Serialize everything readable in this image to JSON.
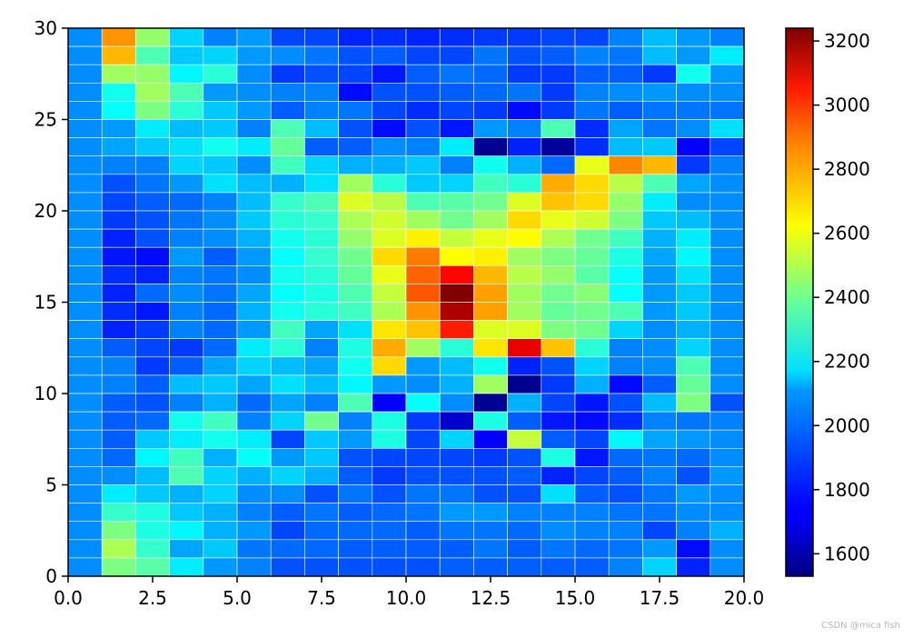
{
  "chart_data": {
    "type": "heatmap",
    "title": "",
    "xlabel": "",
    "ylabel": "",
    "xlim": [
      0,
      20
    ],
    "ylim": [
      0,
      30
    ],
    "x_ticks": [
      "0.0",
      "2.5",
      "5.0",
      "7.5",
      "10.0",
      "12.5",
      "15.0",
      "17.5",
      "20.0"
    ],
    "x_tick_values": [
      0,
      2.5,
      5,
      7.5,
      10,
      12.5,
      15,
      17.5,
      20
    ],
    "y_ticks": [
      "0",
      "5",
      "10",
      "15",
      "20",
      "25",
      "30"
    ],
    "y_tick_values": [
      0,
      5,
      10,
      15,
      20,
      25,
      30
    ],
    "colormap": "jet",
    "grid_lines": "white",
    "colorbar": {
      "min": 1530,
      "max": 3240,
      "ticks": [
        "1600",
        "1800",
        "2000",
        "2200",
        "2400",
        "2600",
        "2800",
        "3000",
        "3200"
      ],
      "tick_values": [
        1600,
        1800,
        2000,
        2200,
        2400,
        2600,
        2800,
        3000,
        3200
      ]
    },
    "n_cols": 20,
    "n_rows": 30,
    "row_order": "top-to-bottom (first row is y=29..30)",
    "values": [
      [
        1980,
        2780,
        2420,
        2100,
        1960,
        2000,
        1860,
        1860,
        1800,
        1820,
        1800,
        1820,
        1840,
        1840,
        1860,
        1860,
        1960,
        2060,
        2000,
        1960
      ],
      [
        1980,
        2720,
        2300,
        2080,
        2100,
        2000,
        1980,
        1940,
        1880,
        1900,
        1860,
        1860,
        1940,
        1880,
        1900,
        1960,
        1940,
        2060,
        2000,
        2140
      ],
      [
        1980,
        2440,
        2420,
        2160,
        2240,
        1980,
        1840,
        1880,
        1860,
        1780,
        1900,
        1940,
        1920,
        1840,
        1840,
        1900,
        1900,
        1840,
        2200,
        2000
      ],
      [
        1980,
        2200,
        2440,
        2300,
        2000,
        1980,
        1960,
        1960,
        1760,
        1880,
        1880,
        1900,
        1920,
        1940,
        1840,
        1960,
        1980,
        2000,
        1980,
        1980
      ],
      [
        1980,
        2180,
        2380,
        2240,
        2080,
        2000,
        1900,
        1960,
        1940,
        1860,
        1820,
        1860,
        1840,
        1760,
        1840,
        1940,
        1900,
        1940,
        1940,
        1940
      ],
      [
        1980,
        2000,
        2140,
        2060,
        2080,
        1960,
        2300,
        2060,
        1880,
        1760,
        1880,
        1780,
        2000,
        1960,
        2300,
        1820,
        2020,
        1940,
        1980,
        2120
      ],
      [
        1980,
        2020,
        2080,
        2120,
        2200,
        2140,
        2340,
        1900,
        1900,
        1980,
        1960,
        2140,
        1560,
        1800,
        1580,
        1820,
        2060,
        2080,
        1740,
        1860
      ],
      [
        1980,
        1960,
        1960,
        2100,
        2080,
        1980,
        2280,
        2100,
        2040,
        2040,
        2080,
        1960,
        2200,
        2040,
        1920,
        2560,
        2800,
        2720,
        1840,
        1960
      ],
      [
        1980,
        1880,
        1940,
        2000,
        2120,
        2060,
        2040,
        2120,
        2440,
        2240,
        2080,
        2100,
        2280,
        2240,
        2740,
        2660,
        2480,
        2300,
        2020,
        1980
      ],
      [
        1980,
        1860,
        1900,
        1920,
        1960,
        2060,
        2260,
        2300,
        2540,
        2480,
        2300,
        2320,
        2360,
        2540,
        2700,
        2660,
        2420,
        2140,
        1980,
        1980
      ],
      [
        1980,
        1840,
        1880,
        1940,
        1980,
        2080,
        2240,
        2260,
        2460,
        2520,
        2440,
        2360,
        2440,
        2660,
        2560,
        2520,
        2380,
        2080,
        2060,
        1980
      ],
      [
        1980,
        1800,
        1880,
        1960,
        1980,
        2040,
        2200,
        2240,
        2420,
        2540,
        2620,
        2500,
        2560,
        2600,
        2460,
        2360,
        2280,
        2040,
        2140,
        1980
      ],
      [
        1980,
        1780,
        1760,
        2000,
        1900,
        2000,
        2180,
        2260,
        2360,
        2660,
        2820,
        2600,
        2620,
        2440,
        2380,
        2340,
        2220,
        2020,
        2160,
        1980
      ],
      [
        1980,
        1820,
        1800,
        1960,
        1940,
        1980,
        2200,
        2240,
        2340,
        2560,
        2860,
        3020,
        2720,
        2480,
        2420,
        2320,
        2180,
        2000,
        2120,
        1980
      ],
      [
        1980,
        1800,
        1920,
        1980,
        1940,
        2020,
        2180,
        2220,
        2300,
        2500,
        2880,
        3240,
        2760,
        2440,
        2360,
        2400,
        2180,
        2000,
        2080,
        1980
      ],
      [
        1980,
        1820,
        1780,
        1960,
        1920,
        2040,
        2200,
        2240,
        2280,
        2460,
        2780,
        3160,
        2760,
        2440,
        2340,
        2360,
        2300,
        2000,
        2080,
        1980
      ],
      [
        1980,
        1800,
        1840,
        1960,
        1920,
        2000,
        2280,
        2020,
        2120,
        2640,
        2700,
        2980,
        2540,
        2540,
        2380,
        2360,
        2100,
        1980,
        2040,
        1980
      ],
      [
        1980,
        1900,
        1860,
        1840,
        1920,
        2140,
        2240,
        1960,
        2220,
        2740,
        2440,
        2240,
        2640,
        3060,
        2700,
        2240,
        1960,
        1980,
        2100,
        1980
      ],
      [
        1980,
        1960,
        1840,
        1900,
        2020,
        2100,
        2060,
        2020,
        2200,
        2660,
        2000,
        2060,
        2200,
        1800,
        1880,
        2100,
        1960,
        1980,
        2300,
        1980
      ],
      [
        1980,
        1960,
        1900,
        2060,
        2080,
        2020,
        2120,
        2060,
        2160,
        2000,
        1980,
        2040,
        2440,
        1560,
        1840,
        2040,
        1760,
        1900,
        2340,
        1980
      ],
      [
        1980,
        1900,
        1880,
        1960,
        2040,
        1920,
        2020,
        1960,
        2300,
        1740,
        2180,
        1980,
        1560,
        2040,
        1860,
        1780,
        1880,
        2060,
        2380,
        1880
      ],
      [
        1980,
        1900,
        1920,
        2200,
        2280,
        1960,
        2100,
        2360,
        1960,
        2220,
        1840,
        1660,
        2220,
        1900,
        1780,
        1760,
        1820,
        1960,
        1940,
        1960
      ],
      [
        1980,
        1900,
        2080,
        2140,
        2200,
        2140,
        1860,
        2080,
        2000,
        2220,
        1860,
        2100,
        1740,
        2500,
        1900,
        1860,
        2160,
        2020,
        2000,
        1980
      ],
      [
        1980,
        1920,
        2160,
        2280,
        2040,
        2180,
        2000,
        2080,
        1880,
        1860,
        1860,
        1860,
        1840,
        1880,
        2220,
        1780,
        1920,
        1940,
        1920,
        1980
      ],
      [
        1980,
        1980,
        2060,
        2300,
        2100,
        2040,
        2100,
        2040,
        1900,
        1840,
        1880,
        1880,
        1880,
        1900,
        1800,
        1860,
        1900,
        1960,
        1880,
        2000
      ],
      [
        1980,
        2140,
        2080,
        2040,
        2100,
        1980,
        1980,
        1880,
        1940,
        1880,
        1940,
        1940,
        1880,
        1880,
        2120,
        1900,
        1880,
        1940,
        2000,
        1980
      ],
      [
        1980,
        2260,
        2220,
        2080,
        2040,
        1960,
        1900,
        1940,
        1900,
        1920,
        1940,
        2000,
        2000,
        1960,
        1960,
        1960,
        1940,
        1940,
        1980,
        1980
      ],
      [
        1980,
        2380,
        2220,
        2160,
        2040,
        2000,
        1860,
        1920,
        1920,
        1920,
        1900,
        1940,
        1940,
        1920,
        1980,
        1960,
        1960,
        1860,
        1960,
        2040
      ],
      [
        1980,
        2460,
        2260,
        2020,
        2080,
        1940,
        1920,
        1920,
        1900,
        1900,
        1900,
        1900,
        1940,
        1900,
        1940,
        1920,
        1940,
        2000,
        1760,
        1980
      ],
      [
        1980,
        2380,
        2320,
        2140,
        2000,
        1960,
        1880,
        1880,
        1880,
        1880,
        1880,
        1900,
        1900,
        1900,
        1900,
        1900,
        1960,
        2100,
        1800,
        1980
      ]
    ]
  },
  "watermark": "CSDN @mica fish"
}
